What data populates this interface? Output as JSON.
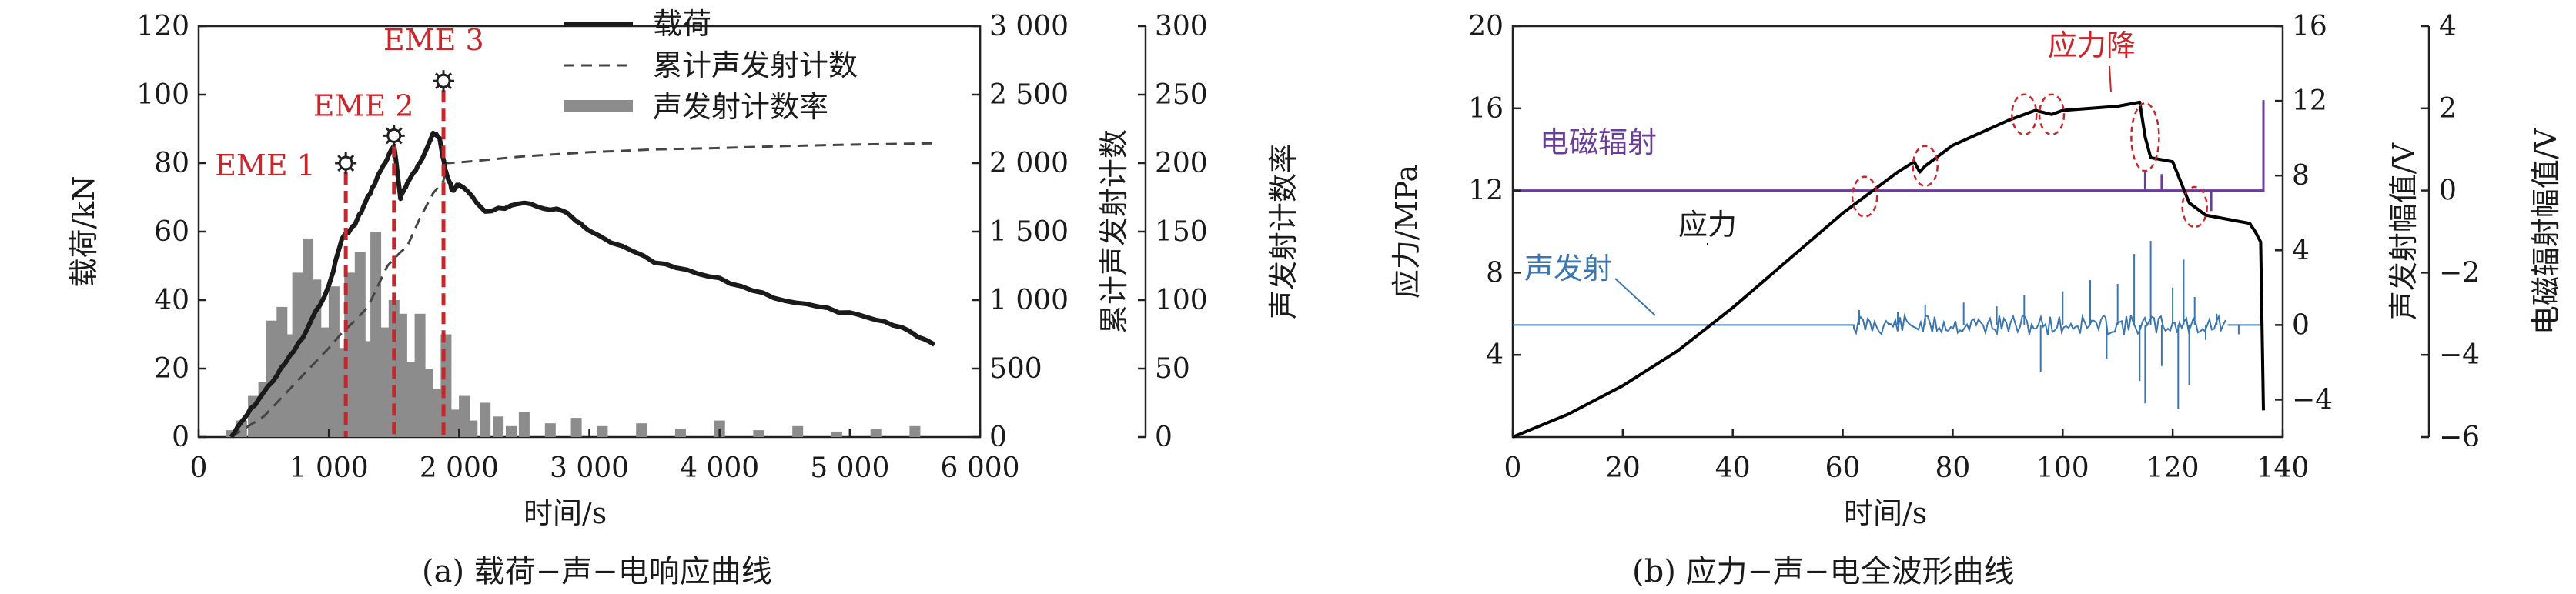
{
  "panel_a": {
    "caption": "(a) 载荷−声−电响应曲线",
    "chart_data": {
      "type": "line",
      "xlabel": "时间/s",
      "ylabel_left": "载荷/kN",
      "ylabel_right1": "累计声发射计数",
      "ylabel_right2": "声发射计数率",
      "xlim": [
        0,
        6000
      ],
      "ylim_left": [
        0,
        120
      ],
      "ylim_right1": [
        0,
        3000
      ],
      "ylim_right2": [
        0,
        300
      ],
      "x_ticks": [
        "0",
        "1 000",
        "2 000",
        "3 000",
        "4 000",
        "5 000",
        "6 000"
      ],
      "y_ticks_left": [
        "0",
        "20",
        "40",
        "60",
        "80",
        "100",
        "120"
      ],
      "y_ticks_right1": [
        "0",
        "500",
        "1 000",
        "1 500",
        "2 000",
        "2 500",
        "3 000"
      ],
      "y_ticks_right2": [
        "0",
        "50",
        "100",
        "150",
        "200",
        "250",
        "300"
      ],
      "legend_position": "top-right",
      "legend": [
        "载荷",
        "累计声发射计数",
        "声发射计数率"
      ],
      "annotations": [
        {
          "label": "EME 1",
          "x": 1130,
          "y": 80
        },
        {
          "label": "EME 2",
          "x": 1500,
          "y": 88
        },
        {
          "label": "EME 3",
          "x": 1880,
          "y": 104
        }
      ],
      "series": [
        {
          "name": "载荷",
          "axis": "left",
          "style": "solid",
          "x": [
            250,
            400,
            600,
            800,
            1000,
            1100,
            1200,
            1300,
            1400,
            1500,
            1550,
            1600,
            1700,
            1800,
            1850,
            1900,
            1950,
            2000,
            2200,
            2500,
            2800,
            3000,
            3500,
            4000,
            4500,
            5000,
            5400,
            5650
          ],
          "y": [
            0,
            8,
            18,
            29,
            44,
            58,
            62,
            70,
            78,
            85,
            70,
            74,
            80,
            89,
            87,
            77,
            72,
            74,
            66,
            68,
            66,
            60,
            51,
            46,
            40,
            36,
            32,
            27
          ]
        },
        {
          "name": "累计声发射计数",
          "axis": "right1",
          "style": "dashed",
          "x": [
            250,
            500,
            800,
            1000,
            1100,
            1200,
            1300,
            1450,
            1550,
            1600,
            1700,
            1800,
            1880,
            1900,
            2000,
            2500,
            3000,
            3500,
            4000,
            4500,
            5000,
            5650
          ],
          "y": [
            0,
            150,
            450,
            650,
            760,
            850,
            950,
            1250,
            1350,
            1390,
            1600,
            1780,
            1870,
            2000,
            2005,
            2050,
            2080,
            2100,
            2110,
            2125,
            2135,
            2145
          ]
        },
        {
          "name": "声发射计数率",
          "axis": "right2",
          "type": "bar",
          "x": [
            250,
            330,
            420,
            500,
            560,
            640,
            700,
            760,
            840,
            900,
            960,
            1040,
            1100,
            1160,
            1240,
            1300,
            1360,
            1440,
            1500,
            1560,
            1640,
            1700,
            1760,
            1840,
            1900,
            1960,
            2040,
            2100,
            2200,
            2300,
            2400,
            2500,
            2700,
            2900,
            3100,
            3400,
            3700,
            4000,
            4300,
            4600,
            4900,
            5200,
            5500
          ],
          "y": [
            5,
            12,
            30,
            40,
            85,
            95,
            75,
            120,
            145,
            115,
            80,
            110,
            65,
            120,
            135,
            70,
            150,
            80,
            100,
            90,
            55,
            90,
            50,
            35,
            75,
            20,
            30,
            12,
            25,
            15,
            8,
            18,
            10,
            14,
            8,
            10,
            6,
            12,
            5,
            8,
            4,
            6,
            8
          ]
        }
      ]
    }
  },
  "panel_b": {
    "caption": "(b) 应力−声−电全波形曲线",
    "chart_data": {
      "type": "line",
      "xlabel": "时间/s",
      "ylabel_left": "应力/MPa",
      "ylabel_right1": "声发射幅值/V",
      "ylabel_right2": "电磁辐射幅值/V",
      "xlim": [
        0,
        140
      ],
      "ylim_left": [
        0,
        20
      ],
      "ylim_right1": [
        -6,
        16
      ],
      "ylim_right2": [
        -6,
        4
      ],
      "x_ticks": [
        "0",
        "20",
        "40",
        "60",
        "80",
        "100",
        "120",
        "140"
      ],
      "y_ticks_left": [
        "4",
        "8",
        "12",
        "16",
        "20"
      ],
      "y_ticks_right1": [
        "−4",
        "0",
        "4",
        "8",
        "12",
        "16"
      ],
      "y_ticks_right2": [
        "−6",
        "−4",
        "−2",
        "0",
        "2",
        "4"
      ],
      "labels": {
        "emr": "电磁辐射",
        "stress": "应力",
        "ae": "声发射",
        "drop": "应力降"
      },
      "circled_times": [
        64,
        75,
        93,
        98,
        115,
        124
      ],
      "series": [
        {
          "name": "应力",
          "axis": "left",
          "color": "#000000",
          "x": [
            0,
            10,
            20,
            30,
            40,
            50,
            60,
            70,
            73,
            74,
            75,
            80,
            90,
            95,
            98,
            100,
            110,
            114,
            115,
            116,
            120,
            123,
            126,
            130,
            134,
            135,
            136,
            136.5
          ],
          "y": [
            0,
            1.1,
            2.5,
            4.2,
            6.3,
            8.6,
            10.9,
            12.9,
            13.4,
            12.9,
            13.2,
            14.2,
            15.4,
            15.9,
            15.7,
            15.9,
            16.1,
            16.3,
            14.6,
            13.6,
            13.4,
            11.4,
            10.8,
            10.6,
            10.4,
            10.0,
            9.5,
            1.3
          ]
        },
        {
          "name": "电磁辐射",
          "axis": "right2",
          "color": "#6a3d9a",
          "baseline": 0,
          "spikes": [
            {
              "x": 115,
              "y": 0.5
            },
            {
              "x": 118,
              "y": 0.4
            },
            {
              "x": 127,
              "y": -0.5
            },
            {
              "x": 136.5,
              "y": 2.2
            }
          ]
        },
        {
          "name": "声发射",
          "axis": "right1",
          "color": "#3a76b0",
          "baseline": 0,
          "spikes": [
            {
              "x": 63,
              "y": 0.8
            },
            {
              "x": 70,
              "y": 0.7
            },
            {
              "x": 75,
              "y": 1.1
            },
            {
              "x": 82,
              "y": 1.2
            },
            {
              "x": 88,
              "y": 1.0
            },
            {
              "x": 93,
              "y": 1.6
            },
            {
              "x": 96,
              "y": -2.5
            },
            {
              "x": 100,
              "y": 1.8
            },
            {
              "x": 105,
              "y": 2.4
            },
            {
              "x": 108,
              "y": -1.8
            },
            {
              "x": 110,
              "y": 2.2
            },
            {
              "x": 113,
              "y": 3.8
            },
            {
              "x": 114,
              "y": -3.0
            },
            {
              "x": 115,
              "y": -4.2
            },
            {
              "x": 116,
              "y": 4.5
            },
            {
              "x": 118,
              "y": -2.2
            },
            {
              "x": 120,
              "y": 2.0
            },
            {
              "x": 121,
              "y": -4.5
            },
            {
              "x": 122,
              "y": 3.5
            },
            {
              "x": 123,
              "y": -3.2
            },
            {
              "x": 124,
              "y": 1.5
            },
            {
              "x": 126,
              "y": -0.8
            },
            {
              "x": 128,
              "y": 0.6
            },
            {
              "x": 132,
              "y": -0.5
            },
            {
              "x": 136,
              "y": 0.4
            }
          ]
        }
      ]
    }
  }
}
